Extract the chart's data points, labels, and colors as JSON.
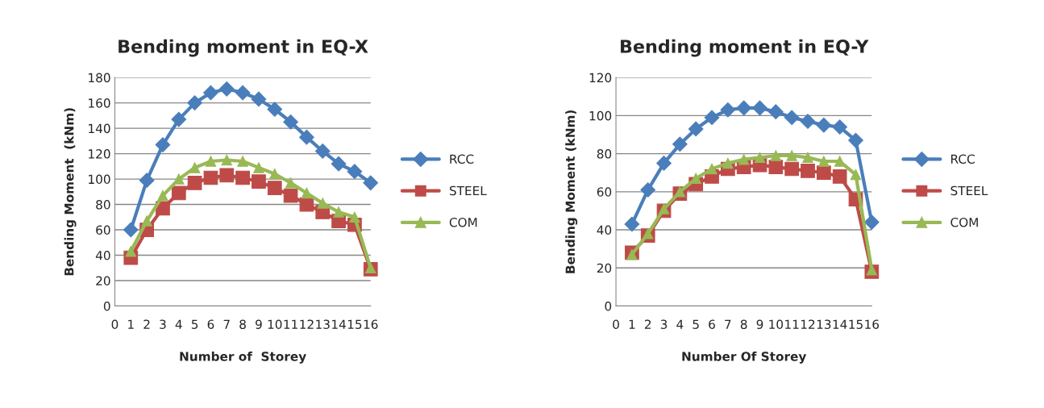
{
  "chart_data": [
    {
      "type": "line",
      "title": "Bending moment in EQ-X",
      "xlabel": "Number of  Storey",
      "ylabel": "Bending Moment  (kNm)",
      "x": [
        1,
        2,
        3,
        4,
        5,
        6,
        7,
        8,
        9,
        10,
        11,
        12,
        13,
        14,
        15,
        16
      ],
      "xlim": [
        0,
        16
      ],
      "xticks": [
        0,
        1,
        2,
        3,
        4,
        5,
        6,
        7,
        8,
        9,
        10,
        11,
        12,
        13,
        14,
        15,
        16
      ],
      "ylim": [
        0,
        180
      ],
      "yticks": [
        0,
        20,
        40,
        60,
        80,
        100,
        120,
        140,
        160,
        180
      ],
      "grid": "y",
      "legend": "right",
      "series": [
        {
          "name": "RCC",
          "color": "#4a7ebb",
          "marker": "diamond",
          "values": [
            60,
            99,
            127,
            147,
            160,
            168,
            171,
            168,
            163,
            155,
            145,
            133,
            122,
            112,
            106,
            97
          ]
        },
        {
          "name": "STEEL",
          "color": "#be4b48",
          "marker": "square",
          "values": [
            38,
            60,
            77,
            89,
            97,
            101,
            103,
            101,
            98,
            93,
            87,
            80,
            74,
            67,
            64,
            29
          ]
        },
        {
          "name": "COM",
          "color": "#98b954",
          "marker": "triangle",
          "values": [
            43,
            67,
            87,
            100,
            109,
            114,
            115,
            114,
            109,
            104,
            97,
            89,
            81,
            74,
            70,
            30
          ]
        }
      ]
    },
    {
      "type": "line",
      "title": "Bending moment in EQ-Y",
      "xlabel": "Number Of Storey",
      "ylabel": "Bending Moment (kNm)",
      "x": [
        1,
        2,
        3,
        4,
        5,
        6,
        7,
        8,
        9,
        10,
        11,
        12,
        13,
        14,
        15,
        16
      ],
      "xlim": [
        0,
        16
      ],
      "xticks": [
        0,
        1,
        2,
        3,
        4,
        5,
        6,
        7,
        8,
        9,
        10,
        11,
        12,
        13,
        14,
        15,
        16
      ],
      "ylim": [
        0,
        120
      ],
      "yticks": [
        0,
        20,
        40,
        60,
        80,
        100,
        120
      ],
      "grid": "y",
      "legend": "right",
      "series": [
        {
          "name": "RCC",
          "color": "#4a7ebb",
          "marker": "diamond",
          "values": [
            43,
            61,
            75,
            85,
            93,
            99,
            103,
            104,
            104,
            102,
            99,
            97,
            95,
            94,
            87,
            44
          ]
        },
        {
          "name": "STEEL",
          "color": "#be4b48",
          "marker": "square",
          "values": [
            28,
            37,
            50,
            59,
            64,
            68,
            72,
            73,
            74,
            73,
            72,
            71,
            70,
            68,
            56,
            18
          ]
        },
        {
          "name": "COM",
          "color": "#98b954",
          "marker": "triangle",
          "values": [
            27,
            38,
            51,
            60,
            67,
            72,
            75,
            77,
            78,
            79,
            79,
            78,
            76,
            76,
            69,
            19
          ]
        }
      ]
    }
  ]
}
